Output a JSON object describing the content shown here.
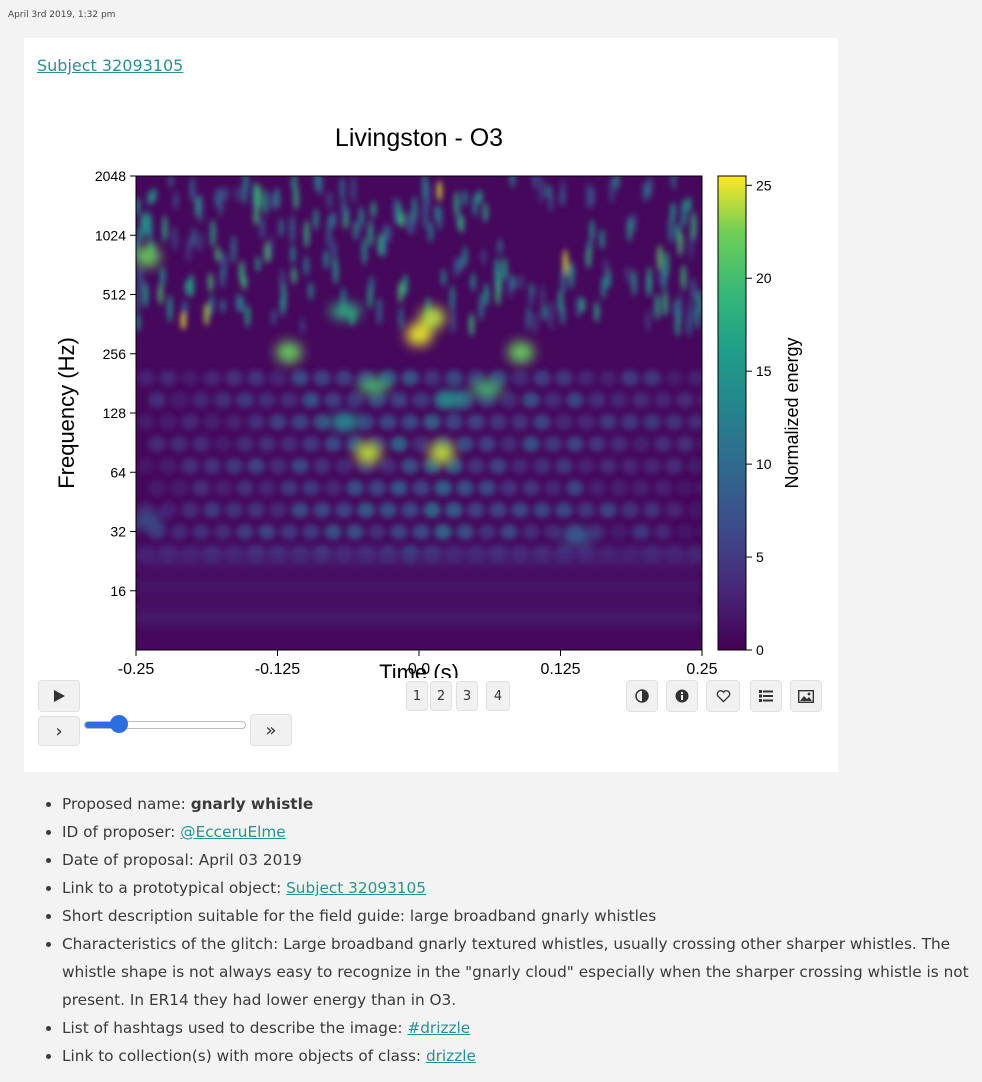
{
  "timestamp": "April 3rd 2019, 1:32 pm",
  "subject_link": "Subject 32093105",
  "player": {
    "pages": [
      "1",
      "2",
      "3",
      "4"
    ],
    "icons": [
      "play-icon",
      "step-forward-icon",
      "fast-forward-icon",
      "contrast-icon",
      "info-icon",
      "heart-icon",
      "list-icon",
      "image-icon"
    ],
    "step_label": "›",
    "ff_label": "»",
    "slider_value": 0.2
  },
  "chart_data": {
    "type": "heatmap",
    "title": "Livingston - O3",
    "xlabel": "Time (s)",
    "ylabel": "Frequency (Hz)",
    "xticks": [
      "-0.25",
      "-0.125",
      "0.0",
      "0.125",
      "0.25"
    ],
    "yticks": [
      "2048",
      "1024",
      "512",
      "256",
      "128",
      "64",
      "32",
      "16"
    ],
    "xlim": [
      -0.25,
      0.25
    ],
    "ylim": [
      8,
      2048
    ],
    "yscale": "log2",
    "colorbar": {
      "label": "Normalized energy",
      "ticks": [
        "0",
        "5",
        "10",
        "15",
        "20",
        "25"
      ],
      "range": [
        0,
        25.5
      ],
      "colormap": "viridis"
    },
    "hotspots": [
      {
        "t": -0.045,
        "f": 80,
        "e": 24
      },
      {
        "t": 0.02,
        "f": 80,
        "e": 24
      },
      {
        "t": -0.115,
        "f": 260,
        "e": 22
      },
      {
        "t": 0.0,
        "f": 320,
        "e": 25
      },
      {
        "t": 0.012,
        "f": 390,
        "e": 24
      },
      {
        "t": 0.09,
        "f": 260,
        "e": 22
      },
      {
        "t": -0.04,
        "f": 175,
        "e": 20
      },
      {
        "t": 0.06,
        "f": 170,
        "e": 20
      },
      {
        "t": -0.065,
        "f": 420,
        "e": 18
      },
      {
        "t": -0.065,
        "f": 115,
        "e": 14
      },
      {
        "t": 0.03,
        "f": 150,
        "e": 15
      },
      {
        "t": -0.24,
        "f": 36,
        "e": 8
      },
      {
        "t": 0.14,
        "f": 30,
        "e": 9
      },
      {
        "t": -0.24,
        "f": 800,
        "e": 22
      }
    ]
  },
  "info": {
    "proposed_name_label": "Proposed name: ",
    "proposed_name": "gnarly whistle",
    "proposer_label": "ID of proposer: ",
    "proposer": "@EcceruElme",
    "date": "Date of proposal: April 03 2019",
    "link_label": "Link to a prototypical object: ",
    "link": "Subject 32093105",
    "short_desc": "Short description suitable for the field guide: large broadband gnarly whistles",
    "characteristics": "Characteristics of the glitch: Large broadband gnarly textured whistles, usually crossing other sharper whistles. The whistle shape is not always easy to recognize in the \"gnarly cloud\" especially when the sharper crossing whistle is not present. In ER14 they had lower energy than in O3.",
    "hashtags_label": "List of hashtags used to describe the image: ",
    "hashtag": "#drizzle",
    "collection_label": "Link to collection(s) with more objects of class: ",
    "collection": "drizzle"
  }
}
